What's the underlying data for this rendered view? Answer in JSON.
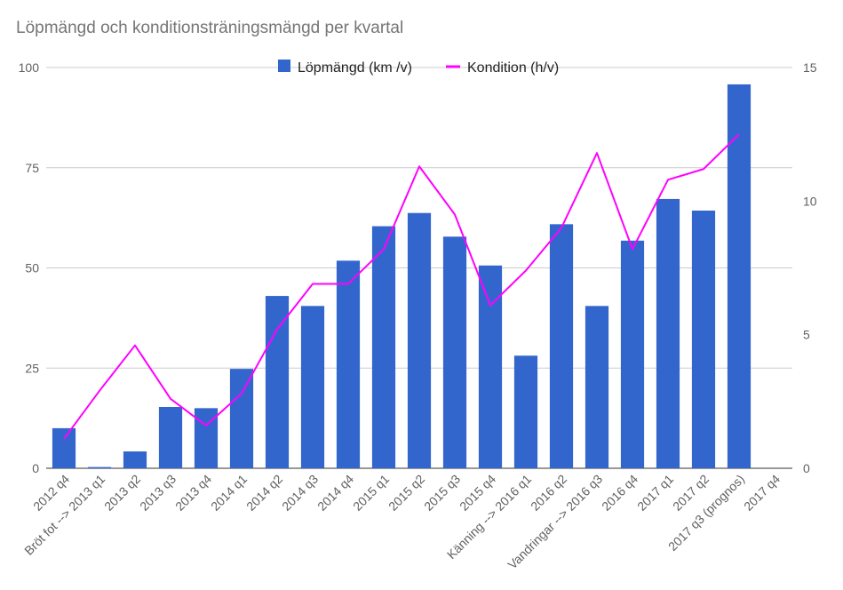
{
  "chart_data": {
    "type": "bar",
    "title": "Löpmängd och konditionsträningsmängd per kvartal",
    "categories": [
      "2012 q4",
      "Bröt fot --> 2013 q1",
      "2013 q2",
      "2013 q3",
      "2013 q4",
      "2014 q1",
      "2014 q2",
      "2014 q3",
      "2014 q4",
      "2015 q1",
      "2015 q2",
      "2015 q3",
      "2015 q4",
      "Känning --> 2016 q1",
      "2016 q2",
      "Vandringar --> 2016 q3",
      "2016 q4",
      "2017 q1",
      "2017 q2",
      "2017 q3 (prognos)",
      "2017 q4"
    ],
    "series": [
      {
        "name": "Löpmängd (km /v)",
        "type": "bar",
        "axis": "left",
        "color": "#3366cc",
        "values": [
          10,
          0.3,
          4.2,
          15.3,
          15,
          24.8,
          43,
          40.5,
          51.8,
          60.4,
          63.7,
          57.8,
          50.6,
          28.1,
          60.9,
          40.5,
          56.8,
          67.2,
          64.3,
          95.8,
          null
        ]
      },
      {
        "name": "Kondition (h/v)",
        "type": "line",
        "axis": "right",
        "color": "#ff00ff",
        "values": [
          1.1,
          2.9,
          4.6,
          2.6,
          1.6,
          2.8,
          5.2,
          6.9,
          6.9,
          8.2,
          11.3,
          9.5,
          6.1,
          7.4,
          9,
          11.8,
          8.2,
          10.8,
          11.2,
          12.5,
          null
        ]
      }
    ],
    "y_left": {
      "min": 0,
      "max": 100,
      "ticks": [
        0,
        25,
        50,
        75,
        100
      ]
    },
    "y_right": {
      "min": 0,
      "max": 15,
      "ticks": [
        0,
        5,
        10,
        15
      ]
    },
    "grid": true,
    "legend": "top-center"
  }
}
